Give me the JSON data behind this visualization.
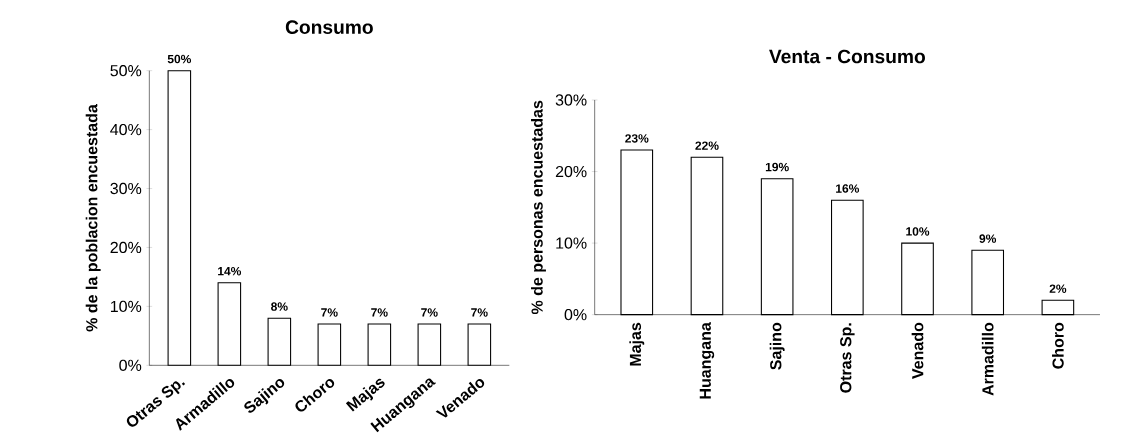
{
  "chart_data": [
    {
      "type": "bar",
      "title": "Consumo",
      "ylabel": "% de la poblacion encuestada",
      "categories": [
        "Otras Sp.",
        "Armadillo",
        "Sajino",
        "Choro",
        "Majas",
        "Huangana",
        "Venado"
      ],
      "values": [
        50,
        14,
        8,
        7,
        7,
        7,
        7
      ],
      "color": "#ffffff",
      "value_labels": [
        "50%",
        "14%",
        "8%",
        "7%",
        "7%",
        "7%",
        "7%"
      ],
      "ylim": [
        0,
        50
      ],
      "yticks": [
        {
          "value": 0,
          "label": "0%"
        },
        {
          "value": 10,
          "label": "10%"
        },
        {
          "value": 20,
          "label": "20%"
        },
        {
          "value": 30,
          "label": "30%"
        },
        {
          "value": 40,
          "label": "40%"
        },
        {
          "value": 50,
          "label": "50%"
        }
      ]
    },
    {
      "type": "bar",
      "title": "Venta - Consumo",
      "ylabel": "% de personas encuestadas",
      "categories": [
        "Majas",
        "Huangana",
        "Sajino",
        "Otras Sp.",
        "Venado",
        "Armadillo",
        "Choro"
      ],
      "values": [
        23,
        22,
        19,
        16,
        10,
        9,
        2
      ],
      "color": "#ffffff",
      "value_labels": [
        "23%",
        "22%",
        "19%",
        "16%",
        "10%",
        "9%",
        "2%"
      ],
      "ylim": [
        0,
        30
      ],
      "yticks": [
        {
          "value": 0,
          "label": "0%"
        },
        {
          "value": 10,
          "label": "10%"
        },
        {
          "value": 20,
          "label": "20%"
        },
        {
          "value": 30,
          "label": "30%"
        }
      ]
    }
  ]
}
